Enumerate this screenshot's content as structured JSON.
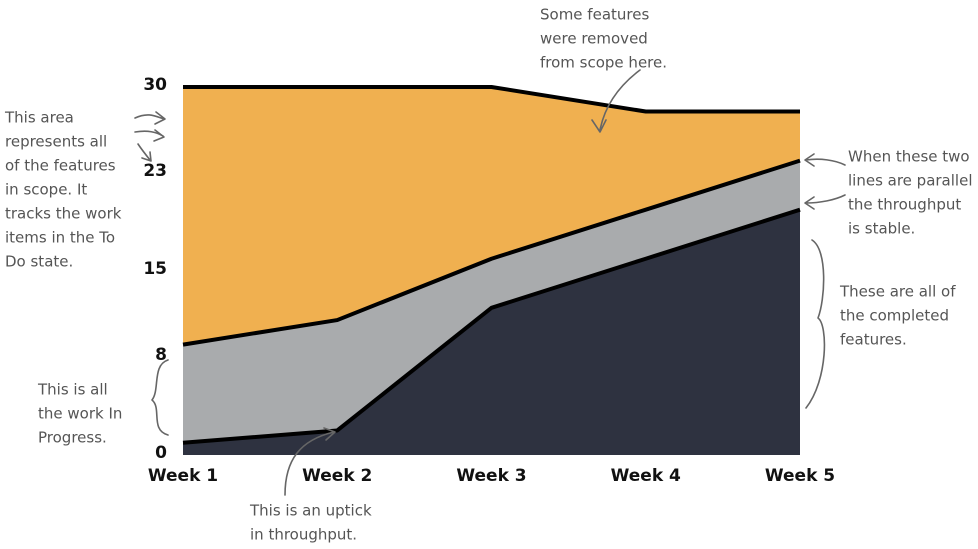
{
  "chart_data": {
    "type": "stacked-area",
    "categories": [
      "Week 1",
      "Week 2",
      "Week 3",
      "Week 4",
      "Week 5"
    ],
    "series": [
      {
        "color": "#2e3240",
        "values": [
          1,
          2,
          12,
          16,
          20
        ]
      },
      {
        "color": "#a9abad",
        "values": [
          8,
          9,
          4,
          4,
          4
        ]
      },
      {
        "color": "#f0b050",
        "values": [
          21,
          19,
          14,
          8,
          4
        ]
      }
    ],
    "ylim": [
      0,
      30
    ],
    "yticks": [
      0,
      8,
      15,
      23,
      30
    ],
    "grid": false,
    "annotations": [
      [
        "Some features",
        "were removed",
        "from scope here."
      ],
      [
        "This area",
        "represents all",
        "of the features",
        "in scope. It",
        "tracks the work",
        "items in the To",
        "Do state."
      ],
      [
        "When these two",
        "lines are parallel",
        "the throughput",
        "is stable."
      ],
      [
        "These are all of",
        "the completed",
        "features."
      ],
      [
        "This is all",
        "the work In",
        "Progress."
      ],
      [
        "This is an uptick",
        "in throughput."
      ]
    ]
  }
}
